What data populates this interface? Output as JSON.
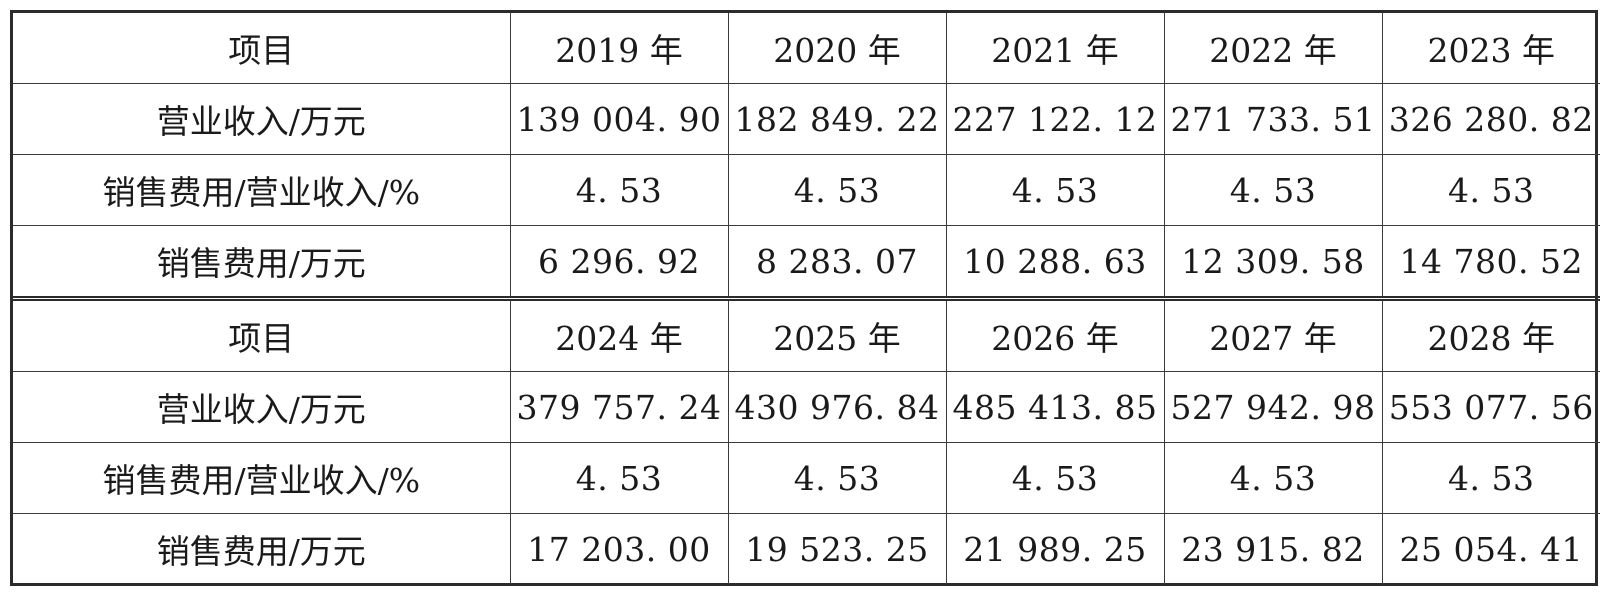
{
  "table": {
    "sections": [
      {
        "header": [
          "项目",
          "2019 年",
          "2020 年",
          "2021 年",
          "2022 年",
          "2023 年"
        ],
        "rows": [
          [
            "营业收入/万元",
            "139 004. 90",
            "182 849. 22",
            "227 122. 12",
            "271 733. 51",
            "326 280. 82"
          ],
          [
            "销售费用/营业收入/%",
            "4. 53",
            "4. 53",
            "4. 53",
            "4. 53",
            "4. 53"
          ],
          [
            "销售费用/万元",
            "6 296. 92",
            "8 283. 07",
            "10 288. 63",
            "12 309. 58",
            "14 780. 52"
          ]
        ]
      },
      {
        "header": [
          "项目",
          "2024 年",
          "2025 年",
          "2026 年",
          "2027 年",
          "2028 年"
        ],
        "rows": [
          [
            "营业收入/万元",
            "379 757. 24",
            "430 976. 84",
            "485 413. 85",
            "527 942. 98",
            "553 077. 56"
          ],
          [
            "销售费用/营业收入/%",
            "4. 53",
            "4. 53",
            "4. 53",
            "4. 53",
            "4. 53"
          ],
          [
            "销售费用/万元",
            "17 203. 00",
            "19 523. 25",
            "21 989. 25",
            "23 915. 82",
            "25 054. 41"
          ]
        ]
      }
    ]
  }
}
